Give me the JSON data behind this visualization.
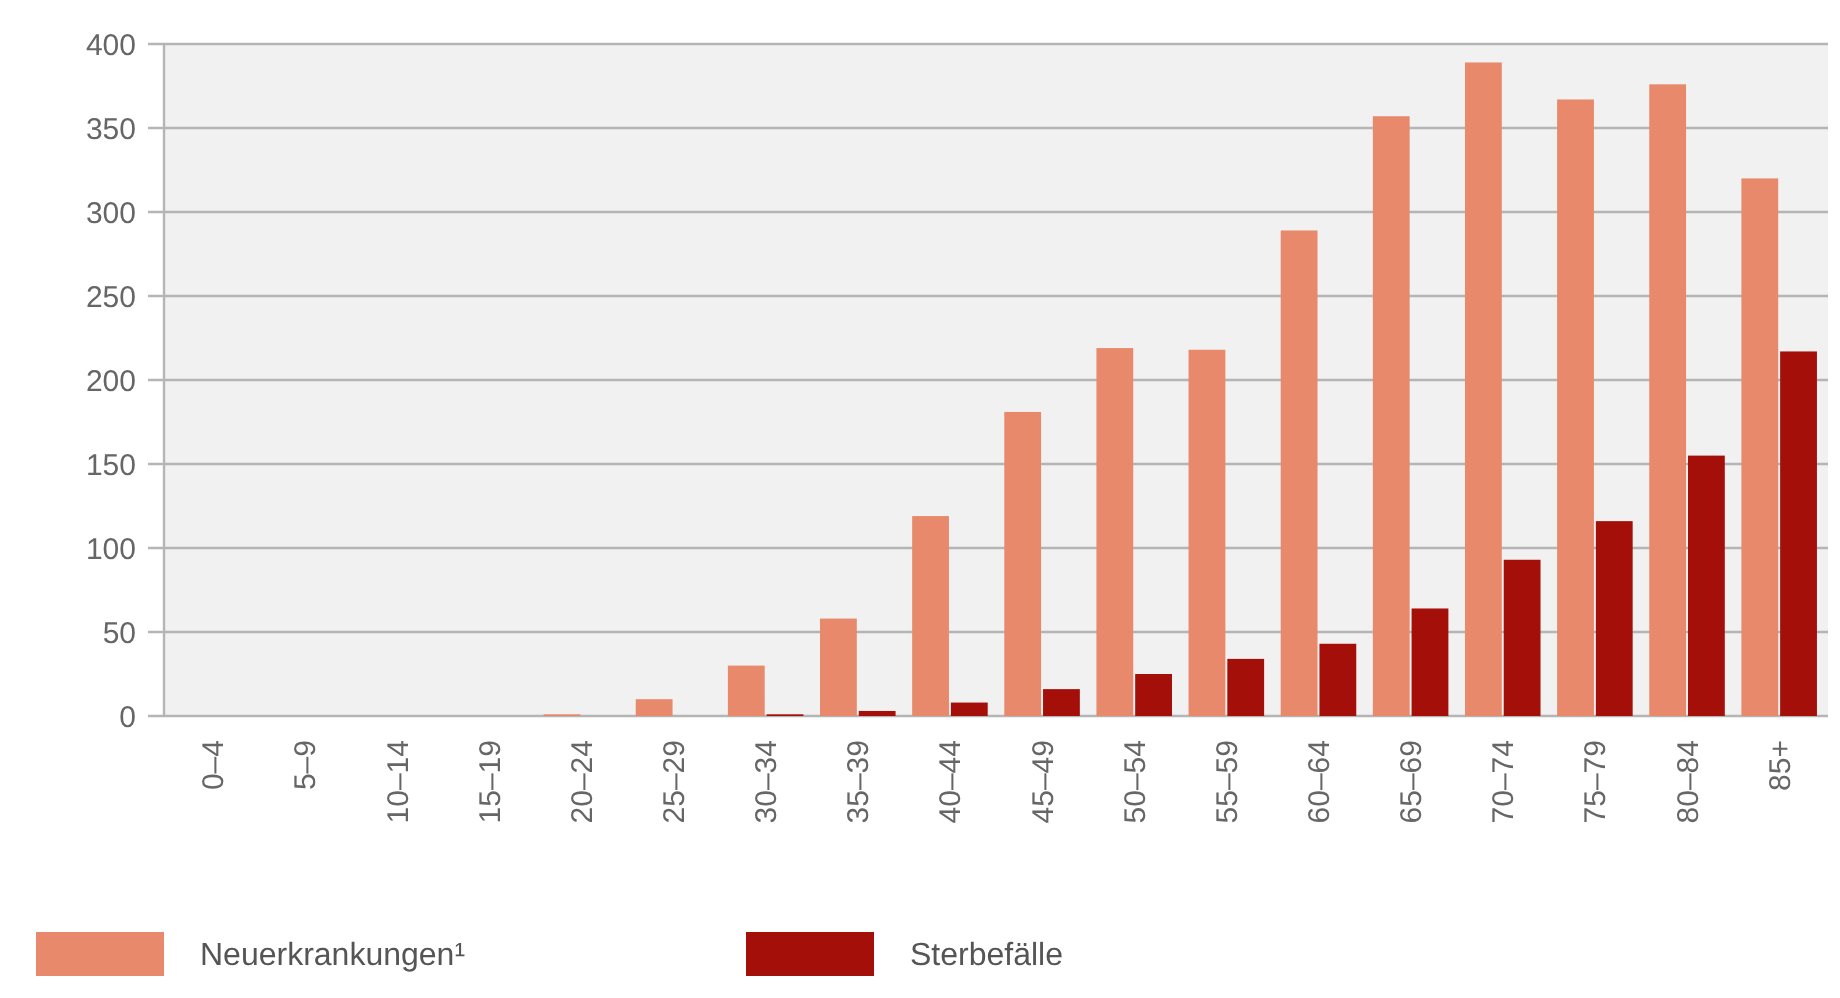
{
  "chart_data": {
    "type": "bar",
    "categories": [
      "0–4",
      "5–9",
      "10–14",
      "15–19",
      "20–24",
      "25–29",
      "30–34",
      "35–39",
      "40–44",
      "45–49",
      "50–54",
      "55–59",
      "60–64",
      "65–69",
      "70–74",
      "75–79",
      "80–84",
      "85+"
    ],
    "series": [
      {
        "name": "Neuerkrankungen¹",
        "color": "#e8896c",
        "values": [
          0,
          0,
          0,
          0,
          1,
          10,
          30,
          58,
          119,
          181,
          219,
          218,
          289,
          357,
          389,
          367,
          376,
          320
        ]
      },
      {
        "name": "Sterbefälle",
        "color": "#a50f0a",
        "values": [
          0,
          0,
          0,
          0,
          0,
          0,
          1,
          3,
          8,
          16,
          25,
          34,
          43,
          64,
          93,
          116,
          155,
          217
        ]
      }
    ],
    "ylim": [
      0,
      400
    ],
    "yticks": [
      0,
      50,
      100,
      150,
      200,
      250,
      300,
      350,
      400
    ],
    "grid": "y",
    "legend": "bottom"
  }
}
